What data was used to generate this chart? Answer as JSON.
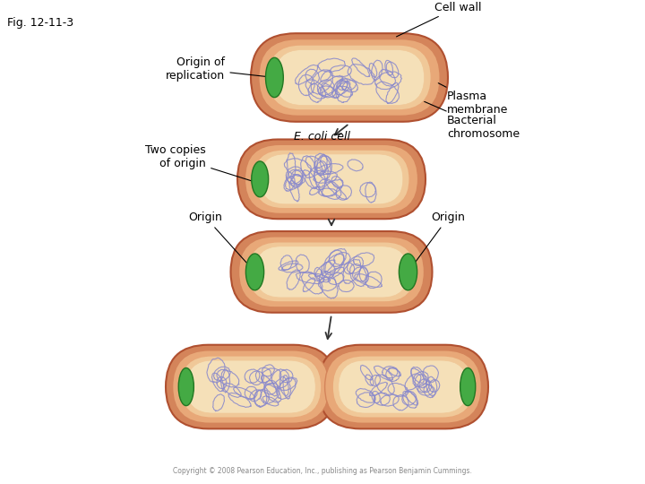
{
  "fig_label": "Fig. 12-11-3",
  "background_color": "#ffffff",
  "cell_wall_color": "#d4845a",
  "cell_membrane_color": "#e8a878",
  "cell_inner_color": "#f0c898",
  "cell_cytoplasm_color": "#f5e0b8",
  "chromosome_color": "#8888cc",
  "origin_color": "#44aa44",
  "origin_border": "#227722",
  "arrow_color": "#333333",
  "text_color": "#000000",
  "labels": {
    "fig": "Fig. 12-11-3",
    "origin_of_replication": "Origin of\nreplication",
    "cell_wall": "Cell wall",
    "plasma_membrane": "Plasma\nmembrane",
    "e_coli_cell": "E. coli cell",
    "bacterial_chromosome": "Bacterial\nchromosome",
    "two_copies": "Two copies\nof origin",
    "origin_left": "Origin",
    "origin_right": "Origin",
    "copyright": "Copyright © 2008 Pearson Education, Inc., publishing as Pearson Benjamin Cummings."
  }
}
